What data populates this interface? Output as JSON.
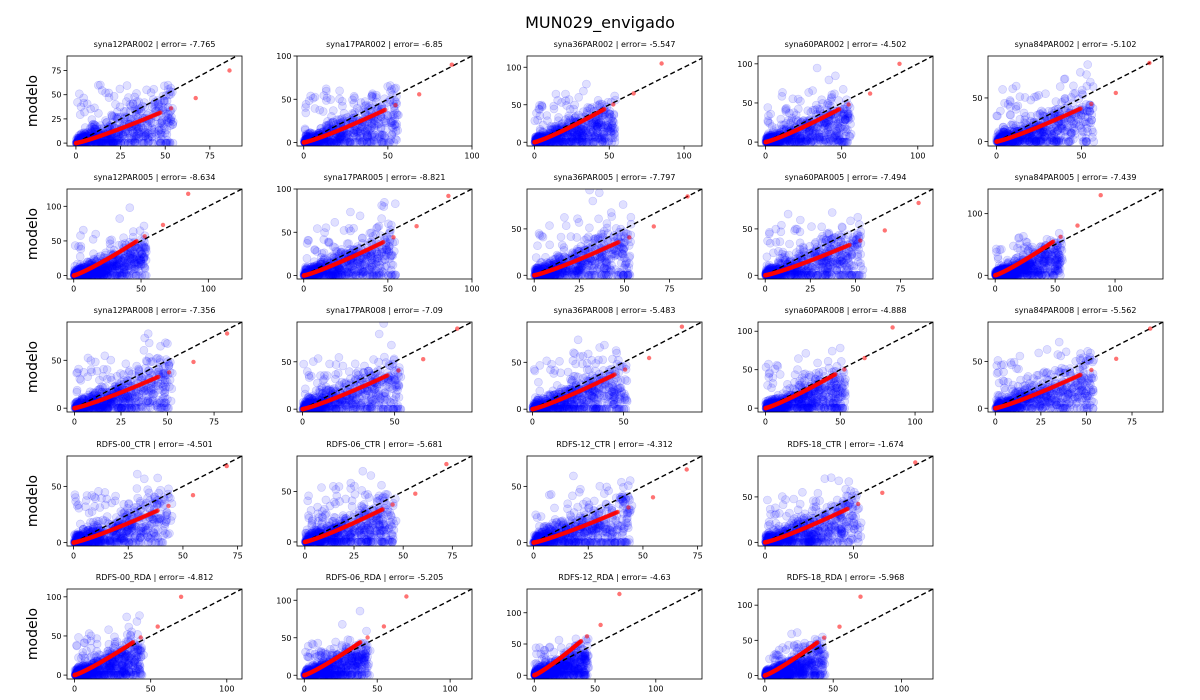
{
  "figure": {
    "title": "MUN029_envigado",
    "ylabel": "modelo"
  },
  "colors": {
    "scatter": "#0000ff",
    "quantile": "#ff0000",
    "identity": "#000000"
  },
  "chart_data": [
    {
      "type": "scatter",
      "title": "syna12PAR002 | error= -7.765",
      "row": 0,
      "col": 0,
      "xlim": [
        -5,
        93
      ],
      "ylim": [
        -3,
        90
      ],
      "xticks": [
        0,
        25,
        50,
        75
      ],
      "yticks": [
        0,
        25,
        50,
        75
      ],
      "xmax": 86,
      "qmax": 75
    },
    {
      "type": "scatter",
      "title": "syna17PAR002 | error= -6.85",
      "row": 0,
      "col": 1,
      "xlim": [
        -4,
        100
      ],
      "ylim": [
        -4,
        100
      ],
      "xticks": [
        0,
        50,
        100
      ],
      "yticks": [
        0,
        50,
        100
      ],
      "xmax": 88,
      "qmax": 90
    },
    {
      "type": "scatter",
      "title": "syna36PAR002 | error= -5.547",
      "row": 0,
      "col": 2,
      "xlim": [
        -5,
        112
      ],
      "ylim": [
        -5,
        115
      ],
      "xticks": [
        0,
        50,
        100
      ],
      "yticks": [
        0,
        50,
        100
      ],
      "xmax": 85,
      "qmax": 105
    },
    {
      "type": "scatter",
      "title": "syna60PAR002 | error= -4.502",
      "row": 0,
      "col": 3,
      "xlim": [
        -5,
        110
      ],
      "ylim": [
        -5,
        110
      ],
      "xticks": [
        0,
        50,
        100
      ],
      "yticks": [
        0,
        50,
        100
      ],
      "xmax": 88,
      "qmax": 100
    },
    {
      "type": "scatter",
      "title": "syna84PAR002 | error= -5.102",
      "row": 0,
      "col": 4,
      "xlim": [
        -5,
        98
      ],
      "ylim": [
        -5,
        98
      ],
      "xticks": [
        0,
        50
      ],
      "yticks": [
        0,
        50
      ],
      "xmax": 90,
      "qmax": 90
    },
    {
      "type": "scatter",
      "title": "syna12PAR005 | error= -8.634",
      "row": 1,
      "col": 0,
      "xlim": [
        -5,
        125
      ],
      "ylim": [
        -5,
        125
      ],
      "xticks": [
        0,
        50,
        100
      ],
      "yticks": [
        0,
        50,
        100
      ],
      "xmax": 85,
      "qmax": 118
    },
    {
      "type": "scatter",
      "title": "syna17PAR005 | error= -8.821",
      "row": 1,
      "col": 1,
      "xlim": [
        -4,
        100
      ],
      "ylim": [
        -4,
        100
      ],
      "xticks": [
        0,
        50,
        100
      ],
      "yticks": [
        0,
        50,
        100
      ],
      "xmax": 86,
      "qmax": 92
    },
    {
      "type": "scatter",
      "title": "syna36PAR005 | error= -7.797",
      "row": 1,
      "col": 2,
      "xlim": [
        -4,
        93
      ],
      "ylim": [
        -4,
        93
      ],
      "xticks": [
        0,
        25,
        50,
        75
      ],
      "yticks": [
        0,
        50
      ],
      "xmax": 85,
      "qmax": 85
    },
    {
      "type": "scatter",
      "title": "syna60PAR005 | error= -7.494",
      "row": 1,
      "col": 3,
      "xlim": [
        -4,
        93
      ],
      "ylim": [
        -4,
        93
      ],
      "xticks": [
        0,
        25,
        50,
        75
      ],
      "yticks": [
        0,
        50
      ],
      "xmax": 85,
      "qmax": 78
    },
    {
      "type": "scatter",
      "title": "syna84PAR005 | error= -7.439",
      "row": 1,
      "col": 4,
      "xlim": [
        -6,
        140
      ],
      "ylim": [
        -6,
        140
      ],
      "xticks": [
        0,
        50,
        100
      ],
      "yticks": [
        0,
        100
      ],
      "xmax": 88,
      "qmax": 130
    },
    {
      "type": "scatter",
      "title": "syna12PAR008 | error= -7.356",
      "row": 2,
      "col": 0,
      "xlim": [
        -4,
        90
      ],
      "ylim": [
        -4,
        90
      ],
      "xticks": [
        0,
        25,
        50,
        75
      ],
      "yticks": [
        0,
        50
      ],
      "xmax": 82,
      "qmax": 78
    },
    {
      "type": "scatter",
      "title": "syna17PAR008 | error= -7.09",
      "row": 2,
      "col": 1,
      "xlim": [
        -3,
        92
      ],
      "ylim": [
        -3,
        92
      ],
      "xticks": [
        0,
        50
      ],
      "yticks": [
        0,
        50
      ],
      "xmax": 84,
      "qmax": 85
    },
    {
      "type": "scatter",
      "title": "syna36PAR008 | error= -5.483",
      "row": 2,
      "col": 2,
      "xlim": [
        -3,
        93
      ],
      "ylim": [
        -3,
        93
      ],
      "xticks": [
        0,
        50
      ],
      "yticks": [
        0,
        50
      ],
      "xmax": 82,
      "qmax": 88
    },
    {
      "type": "scatter",
      "title": "syna60PAR008 | error= -4.888",
      "row": 2,
      "col": 3,
      "xlim": [
        -5,
        112
      ],
      "ylim": [
        -5,
        112
      ],
      "xticks": [
        0,
        50,
        100
      ],
      "yticks": [
        0,
        50,
        100
      ],
      "xmax": 85,
      "qmax": 105
    },
    {
      "type": "scatter",
      "title": "syna84PAR008 | error= -5.562",
      "row": 2,
      "col": 4,
      "xlim": [
        -4,
        92
      ],
      "ylim": [
        -4,
        92
      ],
      "xticks": [
        0,
        25,
        50,
        75
      ],
      "yticks": [
        0,
        50
      ],
      "xmax": 85,
      "qmax": 85
    },
    {
      "type": "scatter",
      "title": "RDFS-00_CTR | error= -4.501",
      "row": 3,
      "col": 0,
      "xlim": [
        -3,
        77
      ],
      "ylim": [
        -3,
        77
      ],
      "xticks": [
        0,
        25,
        50,
        75
      ],
      "yticks": [
        0,
        50
      ],
      "xmax": 70,
      "qmax": 68
    },
    {
      "type": "scatter",
      "title": "RDFS-06_CTR | error= -5.681",
      "row": 3,
      "col": 1,
      "xlim": [
        -4,
        85
      ],
      "ylim": [
        -4,
        85
      ],
      "xticks": [
        0,
        25,
        50,
        75
      ],
      "yticks": [
        0,
        50
      ],
      "xmax": 72,
      "qmax": 77
    },
    {
      "type": "scatter",
      "title": "RDFS-12_CTR | error= -4.312",
      "row": 3,
      "col": 2,
      "xlim": [
        -3,
        77
      ],
      "ylim": [
        -3,
        77
      ],
      "xticks": [
        0,
        25,
        50,
        75
      ],
      "yticks": [
        0,
        50
      ],
      "xmax": 70,
      "qmax": 65
    },
    {
      "type": "scatter",
      "title": "RDFS-18_CTR | error= -1.674",
      "row": 3,
      "col": 3,
      "xlim": [
        -4,
        95
      ],
      "ylim": [
        -4,
        95
      ],
      "xticks": [
        0,
        50
      ],
      "yticks": [
        0,
        50
      ],
      "xmax": 85,
      "qmax": 88
    },
    {
      "type": "scatter",
      "title": "RDFS-00_RDA | error= -4.812",
      "row": 4,
      "col": 0,
      "xlim": [
        -5,
        110
      ],
      "ylim": [
        -5,
        110
      ],
      "xticks": [
        0,
        50,
        100
      ],
      "yticks": [
        0,
        50,
        100
      ],
      "xmax": 70,
      "qmax": 100
    },
    {
      "type": "scatter",
      "title": "RDFS-06_RDA | error= -5.205",
      "row": 4,
      "col": 1,
      "xlim": [
        -5,
        115
      ],
      "ylim": [
        -5,
        115
      ],
      "xticks": [
        0,
        50,
        100
      ],
      "yticks": [
        0,
        50,
        100
      ],
      "xmax": 70,
      "qmax": 105
    },
    {
      "type": "scatter",
      "title": "RDFS-12_RDA | error= -4.63",
      "row": 4,
      "col": 2,
      "xlim": [
        -6,
        138
      ],
      "ylim": [
        -6,
        138
      ],
      "xticks": [
        0,
        50,
        100
      ],
      "yticks": [
        0,
        50,
        100
      ],
      "xmax": 70,
      "qmax": 130
    },
    {
      "type": "scatter",
      "title": "RDFS-18_RDA | error= -5.968",
      "row": 4,
      "col": 3,
      "xlim": [
        -5,
        123
      ],
      "ylim": [
        -5,
        123
      ],
      "xticks": [
        0,
        50,
        100
      ],
      "yticks": [
        0,
        50,
        100
      ],
      "xmax": 70,
      "qmax": 112
    }
  ]
}
